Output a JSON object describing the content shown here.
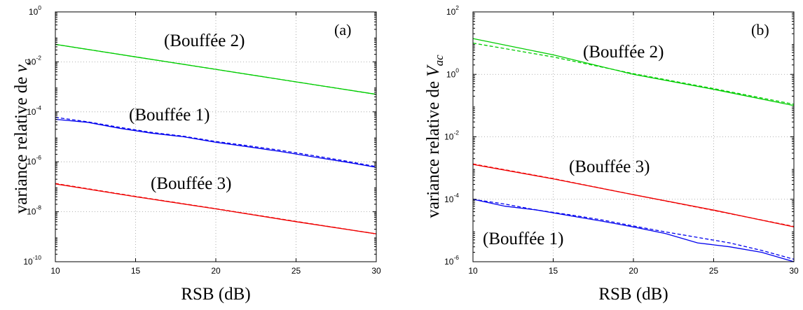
{
  "chart_data": [
    {
      "type": "line",
      "panel_tag": "(a)",
      "ylabel_prefix": "variance relative de ",
      "ylabel_var": "v",
      "ylabel_sub": "c",
      "xlabel": "RSB (dB)",
      "xlim": [
        10,
        30
      ],
      "ylim_exp": [
        -10,
        0
      ],
      "yscale": "log",
      "xticks": [
        "10",
        "15",
        "20",
        "25",
        "30"
      ],
      "yticks_exp": [
        "-10",
        "-8",
        "-6",
        "-4",
        "-2",
        "0"
      ],
      "grid": true,
      "annotations": [
        "(Bouffée 2)",
        "(Bouffée 1)",
        "(Bouffée 3)"
      ],
      "series": [
        {
          "color": "#00cc00",
          "style": "solid",
          "x": [
            10,
            15,
            20,
            25,
            30
          ],
          "y": [
            0.05,
            0.0158,
            0.005,
            0.00158,
            0.0005
          ]
        },
        {
          "color": "#00cc00",
          "style": "dashed",
          "x": [
            10,
            15,
            20,
            25,
            30
          ],
          "y": [
            0.05,
            0.0158,
            0.005,
            0.00158,
            0.0005
          ]
        },
        {
          "color": "#0000ee",
          "style": "solid",
          "x": [
            10,
            12,
            14,
            16,
            18,
            20,
            22,
            24,
            26,
            28,
            30
          ],
          "y": [
            5e-05,
            3.8e-05,
            2.2e-05,
            1.4e-05,
            1e-05,
            6e-06,
            4e-06,
            2.6e-06,
            1.6e-06,
            1e-06,
            6e-07
          ]
        },
        {
          "color": "#0000ee",
          "style": "dashed",
          "x": [
            10,
            12,
            14,
            16,
            18,
            20,
            22,
            24,
            26,
            28,
            30
          ],
          "y": [
            6e-05,
            4e-05,
            2.4e-05,
            1.5e-05,
            1.05e-05,
            6.5e-06,
            4.4e-06,
            2.9e-06,
            1.8e-06,
            1.1e-06,
            6.4e-07
          ]
        },
        {
          "color": "#ee0000",
          "style": "solid",
          "x": [
            10,
            15,
            20,
            25,
            30
          ],
          "y": [
            1.3e-07,
            4e-08,
            1.3e-08,
            4e-09,
            1.3e-09
          ]
        },
        {
          "color": "#ee0000",
          "style": "dashed",
          "x": [
            10,
            15,
            20,
            25,
            30
          ],
          "y": [
            1.35e-07,
            4.1e-08,
            1.33e-08,
            4.1e-09,
            1.3e-09
          ]
        }
      ]
    },
    {
      "type": "line",
      "panel_tag": "(b)",
      "ylabel_prefix": "variance relative de ",
      "ylabel_var": "V",
      "ylabel_sub": "ac",
      "xlabel": "RSB (dB)",
      "xlim": [
        10,
        30
      ],
      "ylim_exp": [
        -6,
        2
      ],
      "yscale": "log",
      "xticks": [
        "10",
        "15",
        "20",
        "25",
        "30"
      ],
      "yticks_exp": [
        "-6",
        "-4",
        "-2",
        "0",
        "2"
      ],
      "grid": true,
      "annotations": [
        "(Bouffée 2)",
        "(Bouffée 3)",
        "(Bouffée 1)"
      ],
      "series": [
        {
          "color": "#00cc00",
          "style": "solid",
          "x": [
            10,
            15,
            20,
            25,
            30
          ],
          "y": [
            14,
            4.2,
            1.0,
            0.33,
            0.1
          ]
        },
        {
          "color": "#00cc00",
          "style": "dashed",
          "x": [
            10,
            15,
            20,
            25,
            30
          ],
          "y": [
            10,
            3.6,
            1.05,
            0.35,
            0.11
          ]
        },
        {
          "color": "#ee0000",
          "style": "solid",
          "x": [
            10,
            15,
            20,
            25,
            30
          ],
          "y": [
            0.0013,
            0.00045,
            0.00014,
            4.5e-05,
            1.3e-05
          ]
        },
        {
          "color": "#ee0000",
          "style": "dashed",
          "x": [
            10,
            15,
            20,
            25,
            30
          ],
          "y": [
            0.00135,
            0.00046,
            0.00014,
            4.4e-05,
            1.35e-05
          ]
        },
        {
          "color": "#0000ee",
          "style": "solid",
          "x": [
            10,
            12,
            14,
            16,
            18,
            20,
            22,
            24,
            26,
            28,
            30
          ],
          "y": [
            0.0001,
            6e-05,
            4.5e-05,
            3e-05,
            2e-05,
            1.3e-05,
            8e-06,
            4e-06,
            3e-06,
            2e-06,
            1e-06
          ]
        },
        {
          "color": "#0000ee",
          "style": "dashed",
          "x": [
            10,
            12,
            14,
            16,
            18,
            20,
            22,
            24,
            26,
            28,
            30
          ],
          "y": [
            0.0001,
            7e-05,
            4.5e-05,
            3.2e-05,
            2.2e-05,
            1.4e-05,
            9e-06,
            6e-06,
            4e-06,
            2.3e-06,
            1.2e-06
          ]
        }
      ]
    }
  ]
}
